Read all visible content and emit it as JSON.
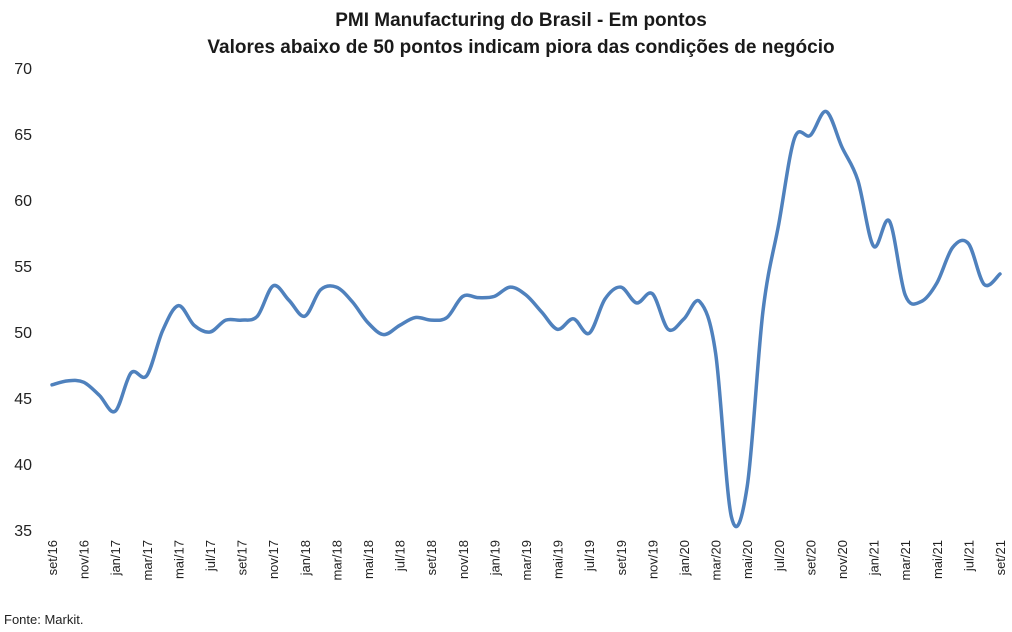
{
  "chart_data": {
    "type": "line",
    "title": "PMI Manufacturing do Brasil - Em pontos",
    "subtitle": "Valores abaixo de 50 pontos indicam piora das condições de negócio",
    "xlabel": "",
    "ylabel": "",
    "ylim": [
      35,
      70
    ],
    "yticks": [
      35,
      40,
      45,
      50,
      55,
      60,
      65,
      70
    ],
    "grid": false,
    "legend": "none",
    "line_color": "#4f81bd",
    "x": [
      "set/16",
      "out/16",
      "nov/16",
      "dez/16",
      "jan/17",
      "fev/17",
      "mar/17",
      "abr/17",
      "mai/17",
      "jun/17",
      "jul/17",
      "ago/17",
      "set/17",
      "out/17",
      "nov/17",
      "dez/17",
      "jan/18",
      "fev/18",
      "mar/18",
      "abr/18",
      "mai/18",
      "jun/18",
      "jul/18",
      "ago/18",
      "set/18",
      "out/18",
      "nov/18",
      "dez/18",
      "jan/19",
      "fev/19",
      "mar/19",
      "abr/19",
      "mai/19",
      "jun/19",
      "jul/19",
      "ago/19",
      "set/19",
      "out/19",
      "nov/19",
      "dez/19",
      "jan/20",
      "fev/20",
      "mar/20",
      "abr/20",
      "mai/20",
      "jun/20",
      "jul/20",
      "ago/20",
      "set/20",
      "out/20",
      "nov/20",
      "dez/20",
      "jan/21",
      "fev/21",
      "mar/21",
      "abr/21",
      "mai/21",
      "jun/21",
      "jul/21",
      "ago/21",
      "set/21"
    ],
    "x_tick_labels": [
      "set/16",
      "nov/16",
      "jan/17",
      "mar/17",
      "mai/17",
      "jul/17",
      "set/17",
      "nov/17",
      "jan/18",
      "mar/18",
      "mai/18",
      "jul/18",
      "set/18",
      "nov/18",
      "jan/19",
      "mar/19",
      "mai/19",
      "jul/19",
      "set/19",
      "nov/19",
      "jan/20",
      "mar/20",
      "mai/20",
      "jul/20",
      "set/20",
      "nov/20",
      "jan/21",
      "mar/21",
      "mai/21",
      "jul/21",
      "set/21"
    ],
    "series": [
      {
        "values": [
          46.0,
          46.3,
          46.2,
          45.2,
          44.0,
          46.9,
          46.7,
          50.1,
          52.0,
          50.5,
          50.0,
          50.9,
          50.9,
          51.2,
          53.5,
          52.4,
          51.2,
          53.2,
          53.4,
          52.3,
          50.7,
          49.8,
          50.5,
          51.1,
          50.9,
          51.1,
          52.7,
          52.6,
          52.7,
          53.4,
          52.8,
          51.5,
          50.2,
          51.0,
          49.9,
          52.5,
          53.4,
          52.2,
          52.9,
          50.2,
          51.0,
          52.3,
          48.4,
          36.0,
          38.3,
          51.6,
          58.2,
          64.7,
          64.9,
          66.7,
          64.0,
          61.5,
          56.5,
          58.4,
          52.8,
          52.3,
          53.7,
          56.4,
          56.7,
          53.6,
          54.4
        ]
      }
    ]
  },
  "source_note": "Fonte: Markit."
}
